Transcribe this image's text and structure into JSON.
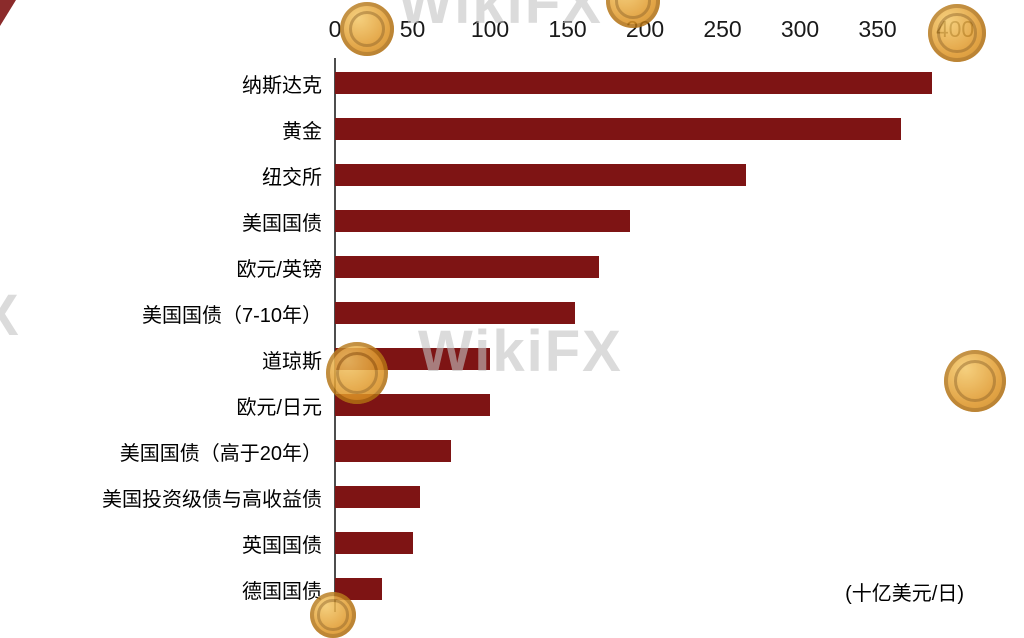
{
  "chart_data": {
    "type": "bar",
    "orientation": "horizontal",
    "title": "",
    "categories": [
      "纳斯达克",
      "黄金",
      "纽交所",
      "美国国债",
      "欧元/英镑",
      "美国国债（7-10年）",
      "道琼斯",
      "欧元/日元",
      "美国国债（高于20年）",
      "美国投资级债与高收益债",
      "英国国债",
      "德国国债"
    ],
    "values": [
      385,
      365,
      265,
      190,
      170,
      155,
      100,
      100,
      75,
      55,
      50,
      30
    ],
    "x_ticks": [
      0,
      50,
      100,
      150,
      200,
      250,
      300,
      350,
      400
    ],
    "xlim": [
      0,
      400
    ],
    "unit_label": "(十亿美元/日)",
    "bar_color": "#7E1414",
    "axis_position": "top",
    "grid": false,
    "legend": false
  },
  "watermark": {
    "text": "WikiFX",
    "partial_text": "X",
    "text_color": "#C3C3C3",
    "coin_color": "#DE9526"
  }
}
